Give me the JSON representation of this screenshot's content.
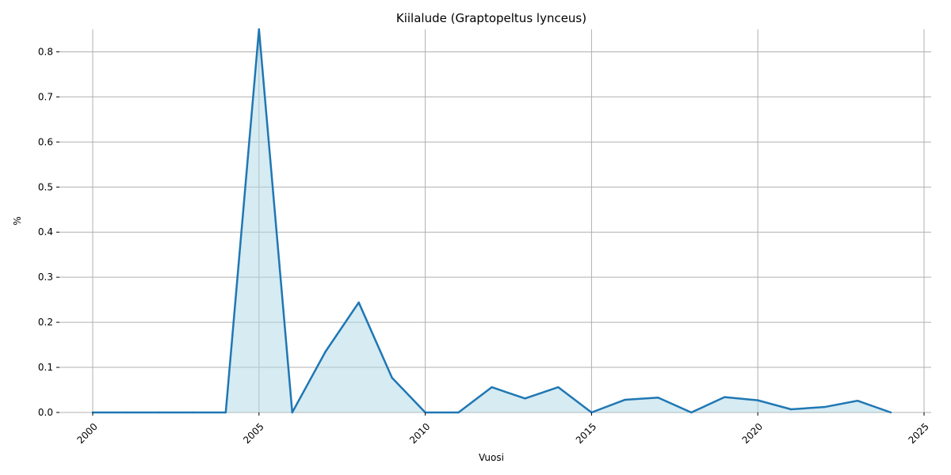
{
  "chart_data": {
    "type": "area",
    "title": "Kiilalude (Graptopeltus lynceus)",
    "xlabel": "Vuosi",
    "ylabel": "%",
    "xlim": [
      1999.5,
      2025.2
    ],
    "ylim": [
      0,
      0.85
    ],
    "xticks": [
      2000,
      2005,
      2010,
      2015,
      2020,
      2025
    ],
    "yticks": [
      0.0,
      0.1,
      0.2,
      0.3,
      0.4,
      0.5,
      0.6,
      0.7,
      0.8
    ],
    "ytick_labels": [
      "0.0",
      "0.1",
      "0.2",
      "0.3",
      "0.4",
      "0.5",
      "0.6",
      "0.7",
      "0.8"
    ],
    "grid": true,
    "x": [
      2000,
      2001,
      2002,
      2003,
      2004,
      2005,
      2006,
      2007,
      2008,
      2009,
      2010,
      2011,
      2012,
      2013,
      2014,
      2015,
      2016,
      2017,
      2018,
      2019,
      2020,
      2021,
      2022,
      2023,
      2024
    ],
    "y": [
      0,
      0,
      0,
      0,
      0,
      0.85,
      0,
      0.135,
      0.244,
      0.077,
      0,
      0,
      0.056,
      0.031,
      0.056,
      0,
      0.028,
      0.033,
      0,
      0.034,
      0.027,
      0.007,
      0.012,
      0.026,
      0
    ],
    "line_color": "#1f77b4",
    "fill_color": "#add8e6"
  }
}
